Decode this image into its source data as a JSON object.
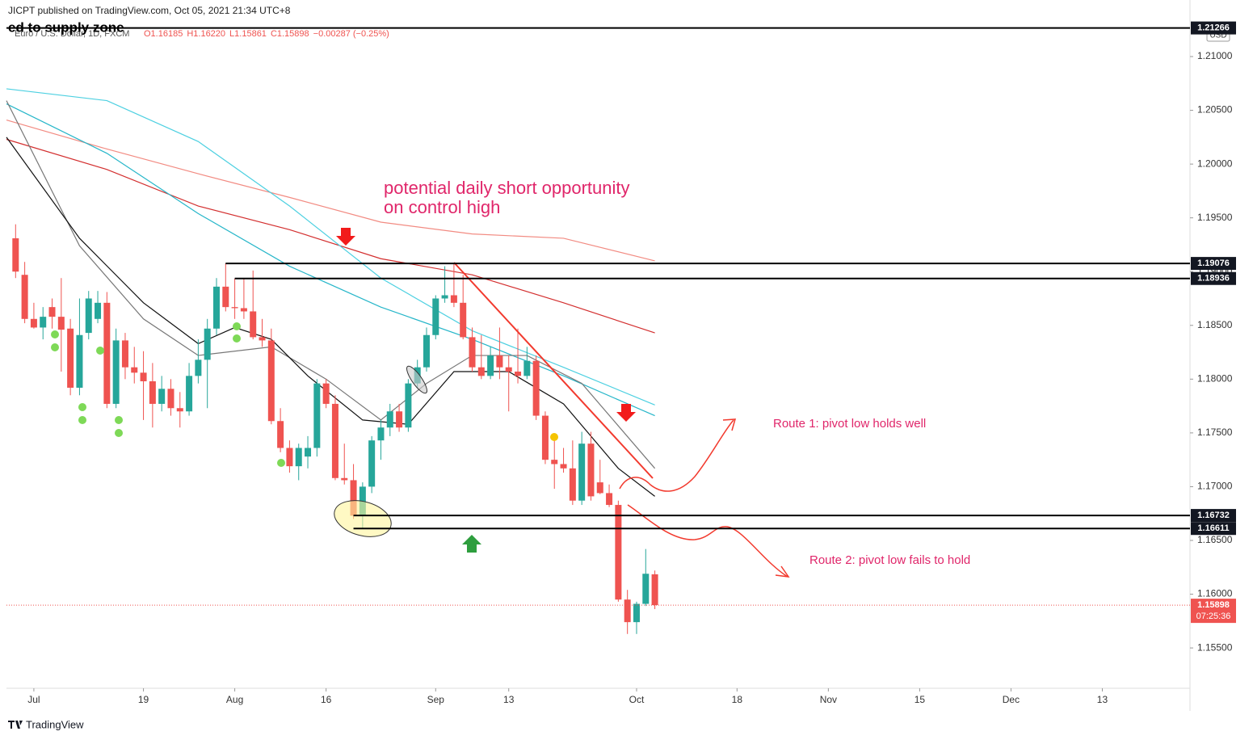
{
  "chart_data": {
    "type": "candlestick",
    "published": "JICPT published on TradingView.com, Oct 05, 2021 21:34 UTC+8",
    "title": "ed to supply zone",
    "symbol": "Euro / U.S. Dollar, 1D, FXCM",
    "legend_values": [
      "O1.16185",
      "H1.16220",
      "L1.15861",
      "C1.15898",
      "−0.00287 (−0.25%)"
    ],
    "currency": "USD",
    "up_color": "#26a69a",
    "down_color": "#ef5350",
    "ylim": [
      1.15125,
      1.21526
    ],
    "yticks": [
      {
        "value": 1.155,
        "label": "1.15500"
      },
      {
        "value": 1.16,
        "label": "1.16000"
      },
      {
        "value": 1.165,
        "label": "1.16500"
      },
      {
        "value": 1.17,
        "label": "1.17000"
      },
      {
        "value": 1.175,
        "label": "1.17500"
      },
      {
        "value": 1.18,
        "label": "1.18000"
      },
      {
        "value": 1.185,
        "label": "1.18500"
      },
      {
        "value": 1.19,
        "label": "1.19000"
      },
      {
        "value": 1.195,
        "label": "1.19500"
      },
      {
        "value": 1.2,
        "label": "1.20000"
      },
      {
        "value": 1.205,
        "label": "1.20500"
      },
      {
        "value": 1.21,
        "label": "1.21000"
      }
    ],
    "xlim": [
      -1,
      128.6
    ],
    "xticks": [
      {
        "value": 2,
        "label": "Jul"
      },
      {
        "value": 14,
        "label": "19"
      },
      {
        "value": 24,
        "label": "Aug"
      },
      {
        "value": 34,
        "label": "16"
      },
      {
        "value": 46,
        "label": "Sep"
      },
      {
        "value": 54,
        "label": "13"
      },
      {
        "value": 68,
        "label": "Oct"
      },
      {
        "value": 79,
        "label": "18"
      },
      {
        "value": 89,
        "label": "Nov"
      },
      {
        "value": 99,
        "label": "15"
      },
      {
        "value": 109,
        "label": "Dec"
      },
      {
        "value": 119,
        "label": "13"
      }
    ],
    "ohlc": [
      [
        1.1931,
        1.1944,
        1.1894,
        1.19
      ],
      [
        1.1897,
        1.1909,
        1.1852,
        1.1856
      ],
      [
        1.1856,
        1.1871,
        1.1847,
        1.1848
      ],
      [
        1.1848,
        1.1867,
        1.1837,
        1.1858
      ],
      [
        1.1867,
        1.1875,
        1.1847,
        1.1858
      ],
      [
        1.1858,
        1.1894,
        1.1807,
        1.1846
      ],
      [
        1.1847,
        1.1856,
        1.1785,
        1.1792
      ],
      [
        1.1792,
        1.1875,
        1.1785,
        1.1841
      ],
      [
        1.1843,
        1.1882,
        1.1837,
        1.1875
      ],
      [
        1.1856,
        1.1882,
        1.1852,
        1.1871
      ],
      [
        1.1871,
        1.1881,
        1.1773,
        1.1777
      ],
      [
        1.1777,
        1.1847,
        1.1773,
        1.1836
      ],
      [
        1.1836,
        1.1843,
        1.18,
        1.1811
      ],
      [
        1.1811,
        1.183,
        1.1796,
        1.1806
      ],
      [
        1.1806,
        1.1826,
        1.1762,
        1.1798
      ],
      [
        1.1798,
        1.1815,
        1.1755,
        1.1777
      ],
      [
        1.1777,
        1.1803,
        1.177,
        1.1791
      ],
      [
        1.1791,
        1.18,
        1.1766,
        1.1773
      ],
      [
        1.1773,
        1.1788,
        1.1755,
        1.177
      ],
      [
        1.177,
        1.1815,
        1.1766,
        1.1803
      ],
      [
        1.1803,
        1.1837,
        1.1796,
        1.1818
      ],
      [
        1.1818,
        1.1856,
        1.1773,
        1.1847
      ],
      [
        1.1847,
        1.1894,
        1.1841,
        1.1886
      ],
      [
        1.1886,
        1.19076,
        1.1863,
        1.1867
      ],
      [
        1.1867,
        1.18936,
        1.1856,
        1.1866
      ],
      [
        1.1866,
        1.1894,
        1.1856,
        1.1863
      ],
      [
        1.1863,
        1.1901,
        1.1837,
        1.1839
      ],
      [
        1.1839,
        1.1856,
        1.183,
        1.1836
      ],
      [
        1.1836,
        1.1847,
        1.1758,
        1.1761
      ],
      [
        1.1761,
        1.1773,
        1.1732,
        1.1736
      ],
      [
        1.1736,
        1.1743,
        1.1713,
        1.1719
      ],
      [
        1.1719,
        1.174,
        1.1706,
        1.1736
      ],
      [
        1.1728,
        1.1747,
        1.1717,
        1.1736
      ],
      [
        1.1736,
        1.18,
        1.1728,
        1.1796
      ],
      [
        1.1796,
        1.18,
        1.1773,
        1.1777
      ],
      [
        1.1777,
        1.1785,
        1.1706,
        1.1708
      ],
      [
        1.1708,
        1.174,
        1.1702,
        1.1706
      ],
      [
        1.1706,
        1.1721,
        1.167,
        1.1673
      ],
      [
        1.1673,
        1.1704,
        1.1661,
        1.17
      ],
      [
        1.17,
        1.1747,
        1.1694,
        1.1743
      ],
      [
        1.1743,
        1.1762,
        1.1725,
        1.1755
      ],
      [
        1.1755,
        1.1777,
        1.1747,
        1.177
      ],
      [
        1.177,
        1.1777,
        1.1751,
        1.1755
      ],
      [
        1.1755,
        1.18,
        1.1751,
        1.1796
      ],
      [
        1.1796,
        1.1818,
        1.1792,
        1.1811
      ],
      [
        1.1811,
        1.1848,
        1.1807,
        1.1841
      ],
      [
        1.1841,
        1.1878,
        1.1837,
        1.1875
      ],
      [
        1.1875,
        1.1905,
        1.1871,
        1.1878
      ],
      [
        1.1878,
        1.19076,
        1.1867,
        1.1871
      ],
      [
        1.1871,
        1.1897,
        1.1837,
        1.1839
      ],
      [
        1.1839,
        1.1848,
        1.1807,
        1.1811
      ],
      [
        1.1811,
        1.1841,
        1.18,
        1.1803
      ],
      [
        1.1803,
        1.183,
        1.18,
        1.1822
      ],
      [
        1.1822,
        1.1848,
        1.18,
        1.1811
      ],
      [
        1.1811,
        1.1822,
        1.177,
        1.1807
      ],
      [
        1.1807,
        1.1847,
        1.1796,
        1.1803
      ],
      [
        1.1803,
        1.183,
        1.18,
        1.1817
      ],
      [
        1.1817,
        1.1822,
        1.1762,
        1.1766
      ],
      [
        1.1766,
        1.177,
        1.1721,
        1.1725
      ],
      [
        1.1725,
        1.1747,
        1.1698,
        1.1721
      ],
      [
        1.1721,
        1.1736,
        1.1713,
        1.1717
      ],
      [
        1.1717,
        1.1743,
        1.1683,
        1.1687
      ],
      [
        1.1687,
        1.1751,
        1.1683,
        1.174
      ],
      [
        1.174,
        1.1751,
        1.1687,
        1.1691
      ],
      [
        1.1704,
        1.1725,
        1.1693,
        1.1694
      ],
      [
        1.1694,
        1.1702,
        1.1681,
        1.1683
      ],
      [
        1.1683,
        1.1687,
        1.1593,
        1.1595
      ],
      [
        1.1595,
        1.1604,
        1.1563,
        1.1574
      ],
      [
        1.1574,
        1.1593,
        1.1563,
        1.1591
      ],
      [
        1.1591,
        1.1642,
        1.1589,
        1.1619
      ],
      [
        1.16185,
        1.1622,
        1.15861,
        1.15898
      ]
    ],
    "lines": [
      {
        "color": "#f28b82",
        "x": [
          -1,
          10,
          20,
          30,
          40,
          50,
          60,
          70
        ],
        "values": [
          1.2041,
          1.2014,
          1.1991,
          1.1969,
          1.1946,
          1.1935,
          1.1931,
          1.191
        ]
      },
      {
        "color": "#d32f2f",
        "x": [
          -1,
          10,
          20,
          30,
          40,
          50,
          60,
          70
        ],
        "values": [
          1.2023,
          1.1995,
          1.1961,
          1.1939,
          1.1912,
          1.1897,
          1.1871,
          1.1843
        ]
      },
      {
        "color": "#4dd0e1",
        "x": [
          -1,
          10,
          20,
          30,
          40,
          50,
          60,
          70
        ],
        "values": [
          1.207,
          1.2059,
          1.2021,
          1.1961,
          1.1894,
          1.1845,
          1.1811,
          1.1776
        ]
      },
      {
        "color": "#26b6c9",
        "x": [
          -1,
          10,
          20,
          30,
          40,
          50,
          60,
          70
        ],
        "values": [
          1.2056,
          1.201,
          1.1954,
          1.1905,
          1.1867,
          1.1837,
          1.1803,
          1.1766
        ]
      },
      {
        "color": "#777777",
        "x": [
          -1,
          7,
          14,
          20,
          28,
          34,
          40,
          45,
          50,
          56,
          62,
          70
        ],
        "values": [
          1.2059,
          1.1924,
          1.1856,
          1.1822,
          1.183,
          1.18,
          1.1762,
          1.1796,
          1.1822,
          1.1822,
          1.1796,
          1.1717
        ]
      },
      {
        "color": "#111111",
        "x": [
          -1,
          7,
          14,
          20,
          24,
          28,
          32,
          38,
          43,
          48,
          54,
          60,
          66,
          70
        ],
        "values": [
          1.2025,
          1.1931,
          1.1871,
          1.1833,
          1.1848,
          1.1837,
          1.1803,
          1.1762,
          1.1758,
          1.1807,
          1.1807,
          1.1777,
          1.1717,
          1.1691
        ]
      }
    ],
    "levels": [
      1.21266,
      1.19076,
      1.18936,
      1.16732,
      1.16611
    ],
    "last_price": 1.15898,
    "countdown": "07:25:36",
    "annotations": [
      "potential daily short opportunity",
      "on control high",
      "Route 1: pivot low holds well",
      "Route 2: pivot low fails to hold"
    ],
    "brand": "TradingView"
  }
}
